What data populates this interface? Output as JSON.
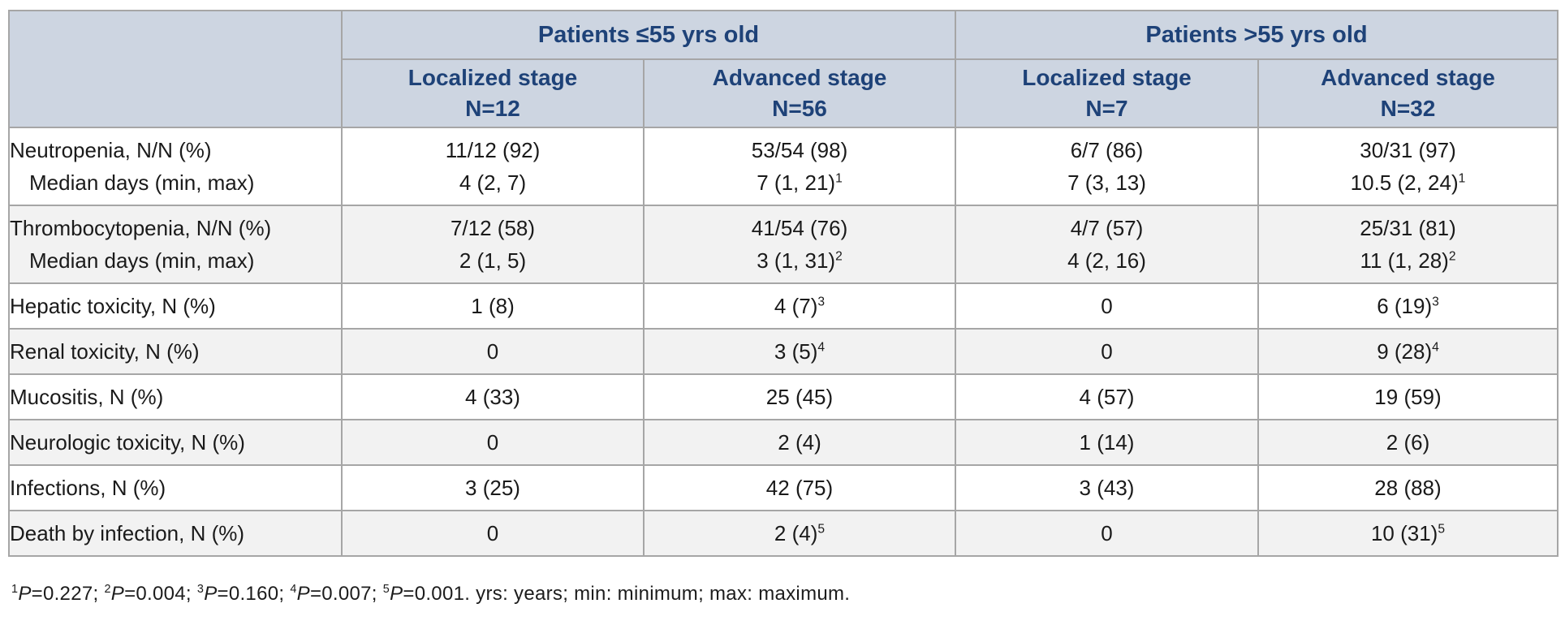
{
  "colors": {
    "header-bg": "#cdd5e1",
    "header-text": "#1e4278",
    "row-alt": "#f2f2f2",
    "border": "#a6a6a6",
    "text": "#1a1a1a",
    "page-bg": "#ffffff"
  },
  "table": {
    "header": {
      "corner_label": "",
      "groups": [
        {
          "label": "Patients ≤55 yrs old"
        },
        {
          "label": "Patients >55 yrs old"
        }
      ],
      "sub_columns": [
        {
          "stage": "Localized stage",
          "n": "N=12"
        },
        {
          "stage": "Advanced stage",
          "n": "N=56"
        },
        {
          "stage": "Localized stage",
          "n": "N=7"
        },
        {
          "stage": "Advanced stage",
          "n": "N=32"
        }
      ]
    },
    "rows": [
      {
        "label_lines": [
          {
            "text": "Neutropenia, N/N (%)",
            "indent": false
          },
          {
            "text": "Median days (min, max)",
            "indent": true
          }
        ],
        "cells": [
          {
            "lines": [
              {
                "text": "11/12 (92)",
                "sup": ""
              },
              {
                "text": "4 (2, 7)",
                "sup": ""
              }
            ]
          },
          {
            "lines": [
              {
                "text": "53/54 (98)",
                "sup": ""
              },
              {
                "text": "7 (1, 21)",
                "sup": "1"
              }
            ]
          },
          {
            "lines": [
              {
                "text": "6/7 (86)",
                "sup": ""
              },
              {
                "text": "7 (3, 13)",
                "sup": ""
              }
            ]
          },
          {
            "lines": [
              {
                "text": "30/31 (97)",
                "sup": ""
              },
              {
                "text": "10.5 (2, 24)",
                "sup": "1"
              }
            ]
          }
        ]
      },
      {
        "label_lines": [
          {
            "text": "Thrombocytopenia, N/N (%)",
            "indent": false
          },
          {
            "text": "Median days (min, max)",
            "indent": true
          }
        ],
        "cells": [
          {
            "lines": [
              {
                "text": "7/12 (58)",
                "sup": ""
              },
              {
                "text": "2 (1, 5)",
                "sup": ""
              }
            ]
          },
          {
            "lines": [
              {
                "text": "41/54 (76)",
                "sup": ""
              },
              {
                "text": "3 (1, 31)",
                "sup": "2"
              }
            ]
          },
          {
            "lines": [
              {
                "text": "4/7 (57)",
                "sup": ""
              },
              {
                "text": "4 (2, 16)",
                "sup": ""
              }
            ]
          },
          {
            "lines": [
              {
                "text": "25/31 (81)",
                "sup": ""
              },
              {
                "text": "11 (1, 28)",
                "sup": "2"
              }
            ]
          }
        ]
      },
      {
        "label_lines": [
          {
            "text": "Hepatic toxicity, N (%)",
            "indent": false
          }
        ],
        "cells": [
          {
            "lines": [
              {
                "text": "1 (8)",
                "sup": ""
              }
            ]
          },
          {
            "lines": [
              {
                "text": "4 (7)",
                "sup": "3"
              }
            ]
          },
          {
            "lines": [
              {
                "text": "0",
                "sup": ""
              }
            ]
          },
          {
            "lines": [
              {
                "text": "6 (19)",
                "sup": "3"
              }
            ]
          }
        ]
      },
      {
        "label_lines": [
          {
            "text": "Renal toxicity, N (%)",
            "indent": false
          }
        ],
        "cells": [
          {
            "lines": [
              {
                "text": "0",
                "sup": ""
              }
            ]
          },
          {
            "lines": [
              {
                "text": "3 (5)",
                "sup": "4"
              }
            ]
          },
          {
            "lines": [
              {
                "text": "0",
                "sup": ""
              }
            ]
          },
          {
            "lines": [
              {
                "text": "9 (28)",
                "sup": "4"
              }
            ]
          }
        ]
      },
      {
        "label_lines": [
          {
            "text": "Mucositis, N (%)",
            "indent": false
          }
        ],
        "cells": [
          {
            "lines": [
              {
                "text": "4 (33)",
                "sup": ""
              }
            ]
          },
          {
            "lines": [
              {
                "text": "25 (45)",
                "sup": ""
              }
            ]
          },
          {
            "lines": [
              {
                "text": "4 (57)",
                "sup": ""
              }
            ]
          },
          {
            "lines": [
              {
                "text": "19 (59)",
                "sup": ""
              }
            ]
          }
        ]
      },
      {
        "label_lines": [
          {
            "text": "Neurologic toxicity, N (%)",
            "indent": false
          }
        ],
        "cells": [
          {
            "lines": [
              {
                "text": "0",
                "sup": ""
              }
            ]
          },
          {
            "lines": [
              {
                "text": "2 (4)",
                "sup": ""
              }
            ]
          },
          {
            "lines": [
              {
                "text": "1 (14)",
                "sup": ""
              }
            ]
          },
          {
            "lines": [
              {
                "text": "2 (6)",
                "sup": ""
              }
            ]
          }
        ]
      },
      {
        "label_lines": [
          {
            "text": "Infections, N (%)",
            "indent": false
          }
        ],
        "cells": [
          {
            "lines": [
              {
                "text": "3 (25)",
                "sup": ""
              }
            ]
          },
          {
            "lines": [
              {
                "text": "42 (75)",
                "sup": ""
              }
            ]
          },
          {
            "lines": [
              {
                "text": "3 (43)",
                "sup": ""
              }
            ]
          },
          {
            "lines": [
              {
                "text": "28 (88)",
                "sup": ""
              }
            ]
          }
        ]
      },
      {
        "label_lines": [
          {
            "text": "Death by infection, N (%)",
            "indent": false
          }
        ],
        "cells": [
          {
            "lines": [
              {
                "text": "0",
                "sup": ""
              }
            ]
          },
          {
            "lines": [
              {
                "text": "2 (4)",
                "sup": "5"
              }
            ]
          },
          {
            "lines": [
              {
                "text": "0",
                "sup": ""
              }
            ]
          },
          {
            "lines": [
              {
                "text": "10 (31)",
                "sup": "5"
              }
            ]
          }
        ]
      }
    ]
  },
  "footnote": {
    "segments": [
      {
        "sup": "1",
        "p": "P",
        "rest": "=0.227; "
      },
      {
        "sup": "2",
        "p": "P",
        "rest": "=0.004; "
      },
      {
        "sup": "3",
        "p": "P",
        "rest": "=0.160; "
      },
      {
        "sup": "4",
        "p": "P",
        "rest": "=0.007; "
      },
      {
        "sup": "5",
        "p": "P",
        "rest": "=0.001."
      }
    ],
    "tail": " yrs: years; min: minimum; max: maximum."
  }
}
